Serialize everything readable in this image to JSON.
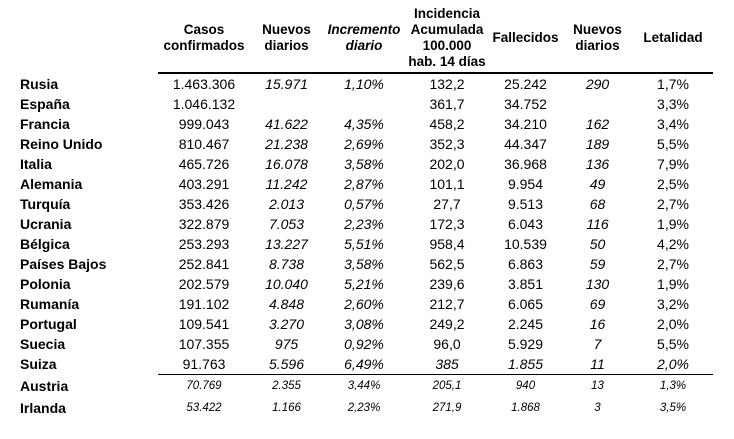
{
  "table": {
    "columns": [
      {
        "id": "country",
        "label": ""
      },
      {
        "id": "casos-confirmados",
        "label": "Casos\nconfirmados"
      },
      {
        "id": "nuevos-diarios-casos",
        "label": "Nuevos\ndiarios"
      },
      {
        "id": "incremento-diario",
        "label": "Incremento\ndiario"
      },
      {
        "id": "incidencia-acumulada",
        "label": "Incidencia\nAcumulada\n100.000\nhab. 14 días"
      },
      {
        "id": "fallecidos",
        "label": "Fallecidos"
      },
      {
        "id": "nuevos-diarios-fallecidos",
        "label": "Nuevos\ndiarios"
      },
      {
        "id": "letalidad",
        "label": "Letalidad"
      }
    ],
    "rows": [
      {
        "country": "Rusia",
        "cells": [
          "1.463.306",
          "15.971",
          "1,10%",
          "132,2",
          "25.242",
          "290",
          "1,7%"
        ],
        "italic_cells": [
          1,
          2,
          5
        ],
        "small": false,
        "rule_below": false
      },
      {
        "country": "España",
        "cells": [
          "1.046.132",
          "",
          "",
          "361,7",
          "34.752",
          "",
          "3,3%"
        ],
        "italic_cells": [
          1,
          2,
          5
        ],
        "small": false,
        "rule_below": false
      },
      {
        "country": "Francia",
        "cells": [
          "999.043",
          "41.622",
          "4,35%",
          "458,2",
          "34.210",
          "162",
          "3,4%"
        ],
        "italic_cells": [
          1,
          2,
          5
        ],
        "small": false,
        "rule_below": false
      },
      {
        "country": "Reino Unido",
        "cells": [
          "810.467",
          "21.238",
          "2,69%",
          "352,3",
          "44.347",
          "189",
          "5,5%"
        ],
        "italic_cells": [
          1,
          2,
          5
        ],
        "small": false,
        "rule_below": false
      },
      {
        "country": "Italia",
        "cells": [
          "465.726",
          "16.078",
          "3,58%",
          "202,0",
          "36.968",
          "136",
          "7,9%"
        ],
        "italic_cells": [
          1,
          2,
          5
        ],
        "small": false,
        "rule_below": false
      },
      {
        "country": "Alemania",
        "cells": [
          "403.291",
          "11.242",
          "2,87%",
          "101,1",
          "9.954",
          "49",
          "2,5%"
        ],
        "italic_cells": [
          1,
          2,
          5
        ],
        "small": false,
        "rule_below": false
      },
      {
        "country": "Turquía",
        "cells": [
          "353.426",
          "2.013",
          "0,57%",
          "27,7",
          "9.513",
          "68",
          "2,7%"
        ],
        "italic_cells": [
          1,
          2,
          5
        ],
        "small": false,
        "rule_below": false
      },
      {
        "country": "Ucrania",
        "cells": [
          "322.879",
          "7.053",
          "2,23%",
          "172,3",
          "6.043",
          "116",
          "1,9%"
        ],
        "italic_cells": [
          1,
          2,
          5
        ],
        "small": false,
        "rule_below": false
      },
      {
        "country": "Bélgica",
        "cells": [
          "253.293",
          "13.227",
          "5,51%",
          "958,4",
          "10.539",
          "50",
          "4,2%"
        ],
        "italic_cells": [
          1,
          2,
          5
        ],
        "small": false,
        "rule_below": false
      },
      {
        "country": "Países Bajos",
        "cells": [
          "252.841",
          "8.738",
          "3,58%",
          "562,5",
          "6.863",
          "59",
          "2,7%"
        ],
        "italic_cells": [
          1,
          2,
          5
        ],
        "small": false,
        "rule_below": false
      },
      {
        "country": "Polonia",
        "cells": [
          "202.579",
          "10.040",
          "5,21%",
          "239,6",
          "3.851",
          "130",
          "1,9%"
        ],
        "italic_cells": [
          1,
          2,
          5
        ],
        "small": false,
        "rule_below": false
      },
      {
        "country": "Rumanía",
        "cells": [
          "191.102",
          "4.848",
          "2,60%",
          "212,7",
          "6.065",
          "69",
          "3,2%"
        ],
        "italic_cells": [
          1,
          2,
          5
        ],
        "small": false,
        "rule_below": false
      },
      {
        "country": "Portugal",
        "cells": [
          "109.541",
          "3.270",
          "3,08%",
          "249,2",
          "2.245",
          "16",
          "2,0%"
        ],
        "italic_cells": [
          1,
          2,
          5
        ],
        "small": false,
        "rule_below": false
      },
      {
        "country": "Suecia",
        "cells": [
          "107.355",
          "975",
          "0,92%",
          "96,0",
          "5.929",
          "7",
          "5,5%"
        ],
        "italic_cells": [
          1,
          2,
          5
        ],
        "small": false,
        "rule_below": false
      },
      {
        "country": "Suiza",
        "cells": [
          "91.763",
          "5.596",
          "6,49%",
          "385",
          "1.855",
          "11",
          "2,0%"
        ],
        "italic_cells": [
          1,
          2,
          3,
          4,
          5,
          6
        ],
        "small": false,
        "rule_below": true
      },
      {
        "country": "Austria",
        "cells": [
          "70.769",
          "2.355",
          "3,44%",
          "205,1",
          "940",
          "13",
          "1,3%"
        ],
        "italic_cells": [
          0,
          1,
          2,
          3,
          4,
          5,
          6
        ],
        "small": true,
        "rule_below": false
      },
      {
        "country": "Irlanda",
        "cells": [
          "53.422",
          "1.166",
          "2,23%",
          "271,9",
          "1.868",
          "3",
          "3,5%"
        ],
        "italic_cells": [
          0,
          1,
          2,
          3,
          4,
          5,
          6
        ],
        "small": true,
        "rule_below": false
      }
    ]
  },
  "colors": {
    "background": "#ffffff",
    "text": "#000000",
    "rule": "#000000"
  }
}
